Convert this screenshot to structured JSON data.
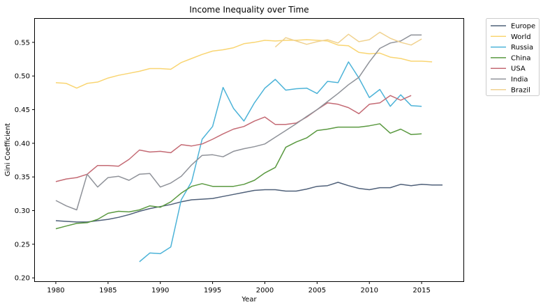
{
  "chart_data": {
    "type": "line",
    "title": "Income Inequality over Time",
    "xlabel": "Year",
    "ylabel": "Gini Coefficient",
    "xlim": [
      1978,
      2019
    ],
    "ylim": [
      0.195,
      0.585
    ],
    "xticks": [
      1980,
      1985,
      1990,
      1995,
      2000,
      2005,
      2010,
      2015
    ],
    "yticks": [
      0.2,
      0.25,
      0.3,
      0.35,
      0.4,
      0.45,
      0.5,
      0.55
    ],
    "ytick_labels": [
      "0.20",
      "0.25",
      "0.30",
      "0.35",
      "0.40",
      "0.45",
      "0.50",
      "0.55"
    ],
    "grid": false,
    "legend_position": "outside-top-right",
    "series": [
      {
        "name": "Europe",
        "color": "#4f6079",
        "x": [
          1980,
          1981,
          1982,
          1983,
          1984,
          1985,
          1986,
          1987,
          1988,
          1989,
          1990,
          1991,
          1992,
          1993,
          1994,
          1995,
          1996,
          1997,
          1998,
          1999,
          2000,
          2001,
          2002,
          2003,
          2004,
          2005,
          2006,
          2007,
          2008,
          2009,
          2010,
          2011,
          2012,
          2013,
          2014,
          2015,
          2016,
          2017
        ],
        "y": [
          0.285,
          0.284,
          0.283,
          0.283,
          0.285,
          0.287,
          0.29,
          0.294,
          0.299,
          0.303,
          0.306,
          0.309,
          0.313,
          0.316,
          0.317,
          0.318,
          0.321,
          0.324,
          0.327,
          0.33,
          0.331,
          0.331,
          0.329,
          0.329,
          0.332,
          0.336,
          0.337,
          0.342,
          0.337,
          0.333,
          0.331,
          0.334,
          0.334,
          0.339,
          0.337,
          0.339,
          0.338,
          0.338
        ]
      },
      {
        "name": "World",
        "color": "#f9d572",
        "x": [
          1980,
          1981,
          1982,
          1983,
          1984,
          1985,
          1986,
          1987,
          1988,
          1989,
          1990,
          1991,
          1992,
          1993,
          1994,
          1995,
          1996,
          1997,
          1998,
          1999,
          2000,
          2001,
          2002,
          2003,
          2004,
          2005,
          2006,
          2007,
          2008,
          2009,
          2010,
          2011,
          2012,
          2013,
          2014,
          2015,
          2016
        ],
        "y": [
          0.49,
          0.489,
          0.482,
          0.489,
          0.491,
          0.497,
          0.501,
          0.504,
          0.507,
          0.511,
          0.511,
          0.51,
          0.52,
          0.526,
          0.532,
          0.537,
          0.539,
          0.542,
          0.548,
          0.55,
          0.553,
          0.552,
          0.553,
          0.553,
          0.554,
          0.553,
          0.552,
          0.546,
          0.545,
          0.535,
          0.533,
          0.534,
          0.528,
          0.526,
          0.522,
          0.522,
          0.521
        ]
      },
      {
        "name": "Russia",
        "color": "#4cb3d8",
        "x": [
          1988,
          1989,
          1990,
          1991,
          1992,
          1993,
          1994,
          1995,
          1996,
          1997,
          1998,
          1999,
          2000,
          2001,
          2002,
          2003,
          2004,
          2005,
          2006,
          2007,
          2008,
          2009,
          2010,
          2011,
          2012,
          2013,
          2014,
          2015
        ],
        "y": [
          0.224,
          0.237,
          0.236,
          0.246,
          0.316,
          0.343,
          0.406,
          0.425,
          0.483,
          0.452,
          0.433,
          0.46,
          0.482,
          0.495,
          0.479,
          0.481,
          0.482,
          0.474,
          0.492,
          0.49,
          0.521,
          0.497,
          0.468,
          0.48,
          0.455,
          0.472,
          0.456,
          0.455
        ]
      },
      {
        "name": "China",
        "color": "#5a9940",
        "x": [
          1980,
          1981,
          1982,
          1983,
          1984,
          1985,
          1986,
          1987,
          1988,
          1989,
          1990,
          1991,
          1992,
          1993,
          1994,
          1995,
          1996,
          1997,
          1998,
          1999,
          2000,
          2001,
          2002,
          2003,
          2004,
          2005,
          2006,
          2007,
          2008,
          2009,
          2010,
          2011,
          2012,
          2013,
          2014,
          2015
        ],
        "y": [
          0.273,
          0.277,
          0.281,
          0.282,
          0.287,
          0.296,
          0.299,
          0.298,
          0.301,
          0.307,
          0.305,
          0.313,
          0.326,
          0.336,
          0.34,
          0.336,
          0.336,
          0.336,
          0.339,
          0.345,
          0.356,
          0.364,
          0.394,
          0.402,
          0.408,
          0.419,
          0.421,
          0.424,
          0.424,
          0.424,
          0.426,
          0.429,
          0.415,
          0.421,
          0.413,
          0.414
        ]
      },
      {
        "name": "USA",
        "color": "#c46a74",
        "x": [
          1980,
          1981,
          1982,
          1983,
          1984,
          1985,
          1986,
          1987,
          1988,
          1989,
          1990,
          1991,
          1992,
          1993,
          1994,
          1995,
          1996,
          1997,
          1998,
          1999,
          2000,
          2001,
          2002,
          2003,
          2004,
          2005,
          2006,
          2007,
          2008,
          2009,
          2010,
          2011,
          2012,
          2013,
          2014
        ],
        "y": [
          0.343,
          0.347,
          0.349,
          0.354,
          0.367,
          0.367,
          0.366,
          0.376,
          0.39,
          0.387,
          0.388,
          0.386,
          0.398,
          0.396,
          0.399,
          0.406,
          0.414,
          0.421,
          0.425,
          0.433,
          0.439,
          0.428,
          0.428,
          0.43,
          0.439,
          0.45,
          0.46,
          0.458,
          0.453,
          0.444,
          0.458,
          0.46,
          0.471,
          0.464,
          0.471
        ]
      },
      {
        "name": "India",
        "color": "#8f9299",
        "x": [
          1980,
          1981,
          1982,
          1983,
          1984,
          1985,
          1986,
          1987,
          1988,
          1989,
          1990,
          1991,
          1992,
          1993,
          1994,
          1995,
          1996,
          1997,
          1998,
          1999,
          2000,
          2001,
          2002,
          2003,
          2004,
          2005,
          2006,
          2007,
          2008,
          2009,
          2010,
          2011,
          2012,
          2013,
          2014,
          2015
        ],
        "y": [
          0.315,
          0.307,
          0.301,
          0.354,
          0.335,
          0.349,
          0.351,
          0.345,
          0.354,
          0.355,
          0.335,
          0.341,
          0.351,
          0.368,
          0.382,
          0.383,
          0.38,
          0.388,
          0.392,
          0.395,
          0.399,
          0.409,
          0.419,
          0.429,
          0.44,
          0.45,
          0.462,
          0.474,
          0.487,
          0.498,
          0.521,
          0.541,
          0.549,
          0.552,
          0.561,
          0.561
        ]
      },
      {
        "name": "Brazil",
        "color": "#f0d290",
        "x": [
          2001,
          2002,
          2003,
          2004,
          2005,
          2006,
          2007,
          2008,
          2009,
          2010,
          2011,
          2012,
          2013,
          2014,
          2015
        ],
        "y": [
          0.543,
          0.557,
          0.552,
          0.547,
          0.551,
          0.554,
          0.549,
          0.562,
          0.551,
          0.554,
          0.565,
          0.556,
          0.55,
          0.546,
          0.555
        ]
      }
    ]
  }
}
